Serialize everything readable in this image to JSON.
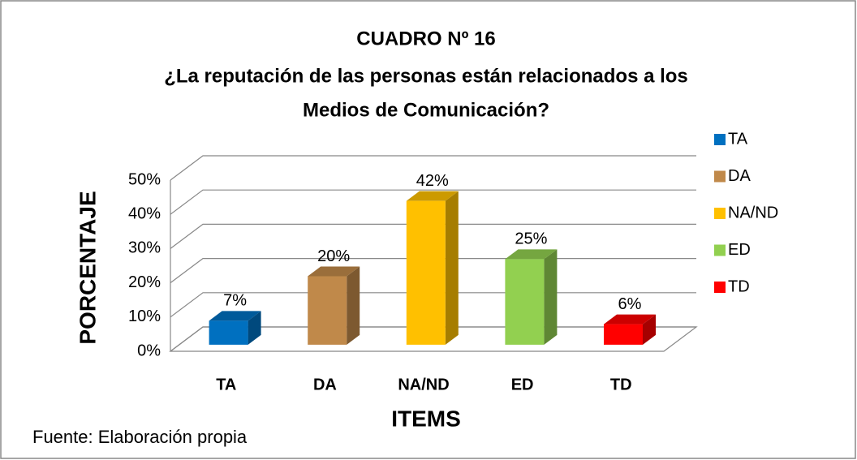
{
  "chart_data": {
    "type": "bar3d",
    "title": [
      "CUADRO Nº 16",
      "¿La reputación de las personas están relacionados a los",
      "Medios de Comunicación?"
    ],
    "categories": [
      "TA",
      "DA",
      "NA/ND",
      "ED",
      "TD"
    ],
    "values": [
      7,
      20,
      42,
      25,
      6
    ],
    "value_labels": [
      "7%",
      "20%",
      "42%",
      "25%",
      "6%"
    ],
    "colors": [
      "#0070c0",
      "#c0894a",
      "#ffc000",
      "#92d050",
      "#ff0000"
    ],
    "ylim": [
      0,
      50
    ],
    "yticks": [
      {
        "value": 0,
        "label": "0%"
      },
      {
        "value": 10,
        "label": "10%"
      },
      {
        "value": 20,
        "label": "20%"
      },
      {
        "value": 30,
        "label": "30%"
      },
      {
        "value": 40,
        "label": "40%"
      },
      {
        "value": 50,
        "label": "50%"
      }
    ],
    "y_label": "PORCENTAJE",
    "x_label": "ITEMS",
    "grid": true,
    "legend": "right",
    "source": "Fuente: Elaboración propia"
  }
}
